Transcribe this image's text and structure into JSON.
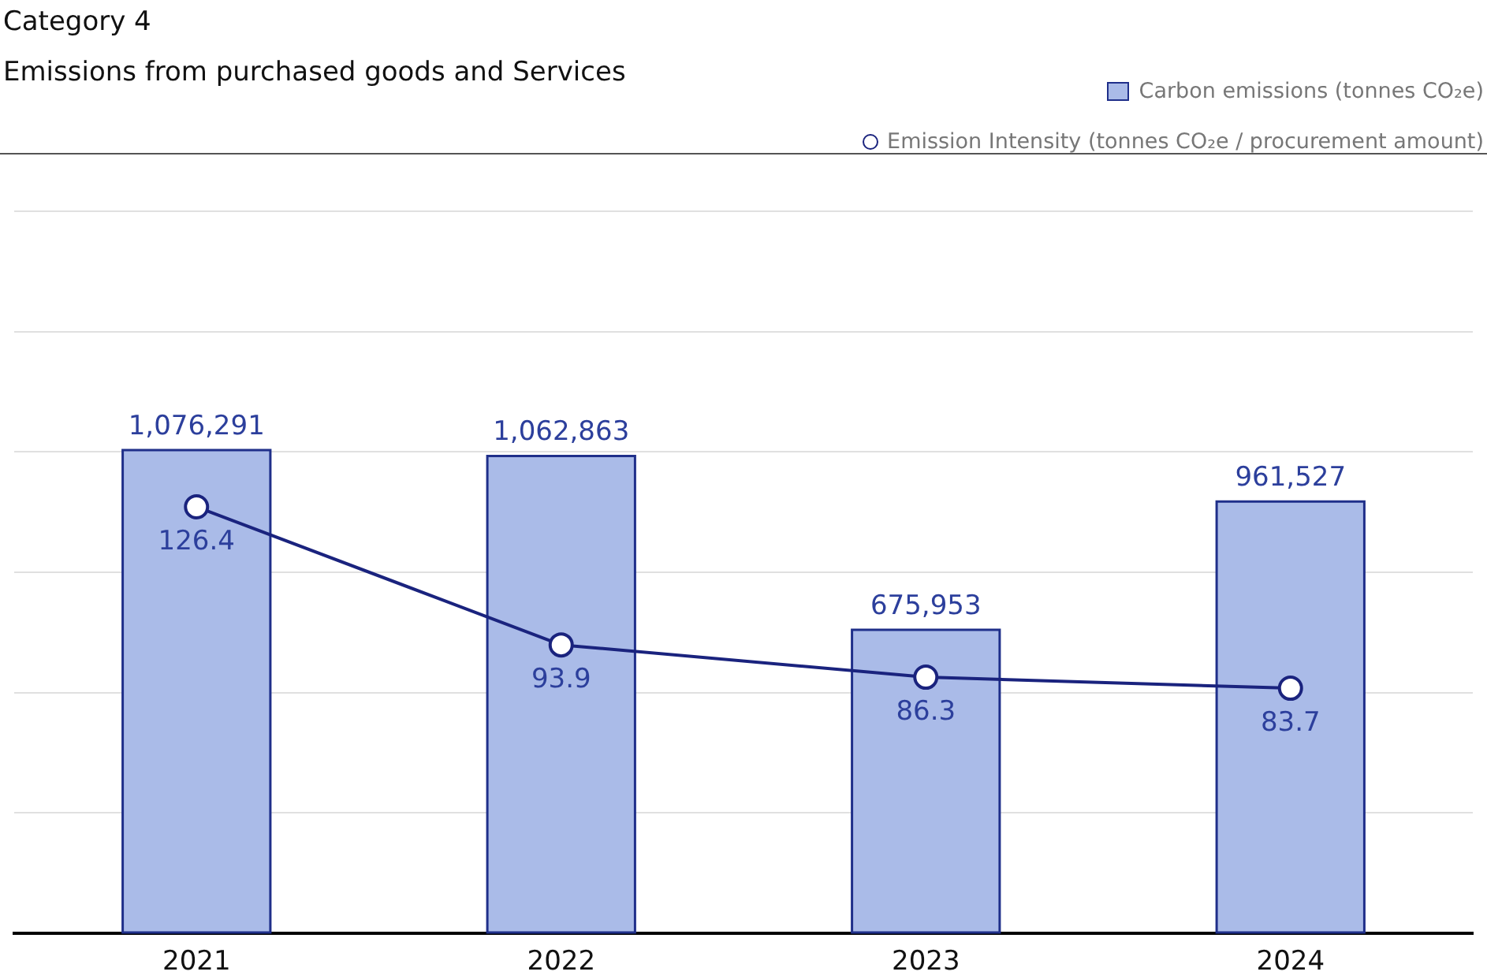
{
  "chart_data": {
    "type": "bar",
    "title": "Category 4",
    "subtitle": "Emissions from purchased goods and Services",
    "categories": [
      "2021",
      "2022",
      "2023",
      "2024"
    ],
    "series": [
      {
        "name": "Carbon emissions (tonnes CO₂e)",
        "color": "#aabbe8",
        "values": [
          1076291,
          1062863,
          675953,
          961527
        ],
        "value_labels": [
          "1,076,291",
          "1,062,863",
          "675,953",
          "961,527"
        ]
      },
      {
        "name": "Emission Intensity (tonnes CO₂e / procurement amount)",
        "type": "line",
        "axis": "y2",
        "color": "#1a237e",
        "values": [
          126.4,
          93.9,
          86.3,
          83.7
        ],
        "value_labels": [
          "126.4",
          "93.9",
          "86.3",
          "83.7"
        ]
      }
    ],
    "ylim": [
      0,
      1608000
    ],
    "yticks": [
      {
        "value": 0,
        "label": null
      },
      {
        "value": 268000,
        "label": null
      },
      {
        "value": 536000,
        "label": null
      },
      {
        "value": 804000,
        "label": null
      },
      {
        "value": 1072000,
        "label": null
      },
      {
        "value": 1340000,
        "label": null
      },
      {
        "value": 1608000,
        "label": null
      }
    ],
    "y2lim": [
      26,
      196
    ],
    "grid": "y",
    "legend": "top right",
    "marker": "circle",
    "tick_labels": "x"
  }
}
